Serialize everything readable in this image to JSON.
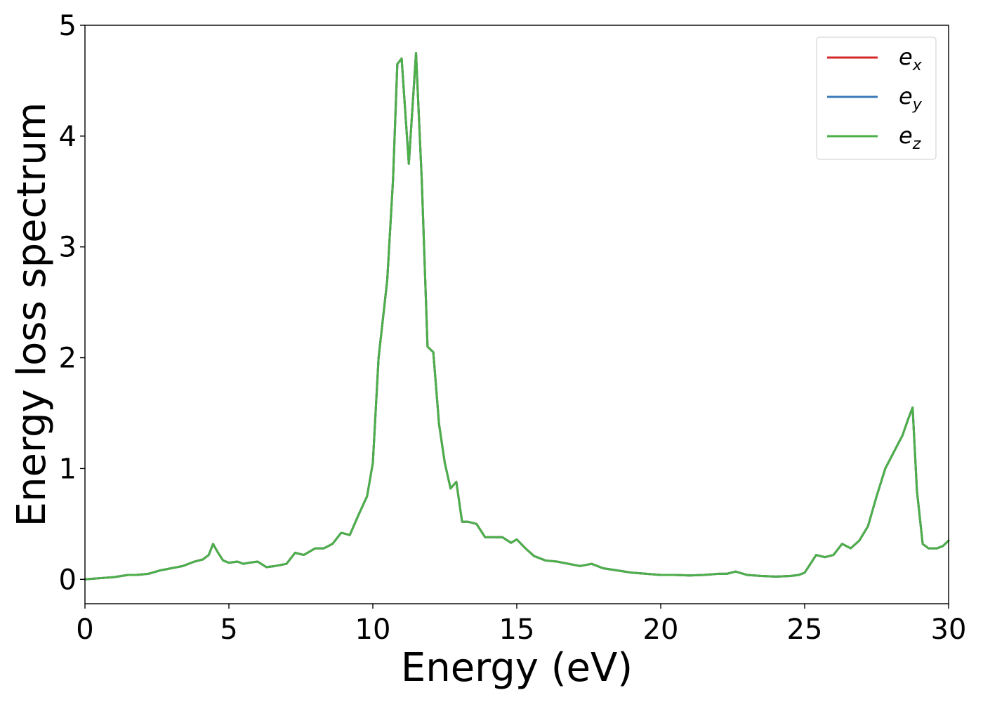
{
  "chart_data": {
    "type": "line",
    "xlabel": "Energy (eV)",
    "ylabel": "Energy loss spectrum",
    "xlim": [
      0,
      30
    ],
    "ylim": [
      -0.22,
      5.0
    ],
    "xticks": [
      0,
      5,
      10,
      15,
      20,
      25,
      30
    ],
    "xtick_labels": [
      "0",
      "5",
      "10",
      "15",
      "20",
      "25",
      "30"
    ],
    "yticks": [
      0,
      1,
      2,
      3,
      4,
      5
    ],
    "ytick_labels": [
      "0",
      "1",
      "2",
      "3",
      "4",
      "5"
    ],
    "grid": false,
    "legend_position": "top-right",
    "legend": [
      {
        "base": "e",
        "sub": "x",
        "color": "#d62728"
      },
      {
        "base": "e",
        "sub": "y",
        "color": "#3a7ab8"
      },
      {
        "base": "e",
        "sub": "z",
        "color": "#4daf4a"
      }
    ],
    "x": [
      0,
      0.5,
      1.0,
      1.5,
      1.8,
      2.2,
      2.6,
      3.0,
      3.4,
      3.8,
      4.1,
      4.3,
      4.45,
      4.6,
      4.8,
      5.0,
      5.3,
      5.5,
      5.7,
      6.0,
      6.3,
      6.6,
      7.0,
      7.3,
      7.6,
      8.0,
      8.3,
      8.6,
      8.9,
      9.2,
      9.5,
      9.8,
      10.0,
      10.2,
      10.5,
      10.7,
      10.85,
      11.0,
      11.25,
      11.5,
      11.7,
      11.9,
      12.1,
      12.3,
      12.5,
      12.7,
      12.9,
      13.1,
      13.3,
      13.6,
      13.9,
      14.2,
      14.5,
      14.8,
      15.0,
      15.3,
      15.6,
      16.0,
      16.4,
      16.8,
      17.2,
      17.6,
      18.0,
      18.5,
      19.0,
      19.5,
      20.0,
      20.5,
      21.0,
      21.5,
      22.0,
      22.3,
      22.6,
      23.0,
      23.5,
      24.0,
      24.5,
      24.8,
      25.0,
      25.2,
      25.4,
      25.7,
      26.0,
      26.3,
      26.6,
      26.9,
      27.2,
      27.5,
      27.8,
      28.0,
      28.2,
      28.4,
      28.6,
      28.75,
      28.9,
      29.1,
      29.3,
      29.6,
      29.8,
      30.0
    ],
    "series": [
      {
        "values": [
          0.0,
          0.01,
          0.02,
          0.04,
          0.04,
          0.05,
          0.08,
          0.1,
          0.12,
          0.16,
          0.18,
          0.22,
          0.32,
          0.25,
          0.17,
          0.15,
          0.16,
          0.14,
          0.15,
          0.16,
          0.11,
          0.12,
          0.14,
          0.24,
          0.22,
          0.28,
          0.28,
          0.32,
          0.42,
          0.4,
          0.58,
          0.75,
          1.05,
          2.0,
          2.7,
          3.6,
          4.65,
          4.7,
          3.75,
          4.75,
          3.6,
          2.1,
          2.05,
          1.4,
          1.05,
          0.82,
          0.88,
          0.52,
          0.52,
          0.5,
          0.38,
          0.38,
          0.38,
          0.33,
          0.36,
          0.28,
          0.21,
          0.17,
          0.16,
          0.14,
          0.12,
          0.14,
          0.1,
          0.08,
          0.06,
          0.05,
          0.04,
          0.04,
          0.035,
          0.04,
          0.05,
          0.05,
          0.07,
          0.04,
          0.03,
          0.025,
          0.03,
          0.04,
          0.06,
          0.14,
          0.22,
          0.2,
          0.22,
          0.32,
          0.28,
          0.35,
          0.48,
          0.75,
          1.0,
          1.1,
          1.2,
          1.3,
          1.45,
          1.55,
          0.8,
          0.32,
          0.28,
          0.28,
          0.3,
          0.35
        ]
      },
      {
        "values": [
          0.0,
          0.01,
          0.02,
          0.04,
          0.04,
          0.05,
          0.08,
          0.1,
          0.12,
          0.16,
          0.18,
          0.22,
          0.32,
          0.25,
          0.17,
          0.15,
          0.16,
          0.14,
          0.15,
          0.16,
          0.11,
          0.12,
          0.14,
          0.24,
          0.22,
          0.28,
          0.28,
          0.32,
          0.42,
          0.4,
          0.58,
          0.75,
          1.05,
          2.0,
          2.7,
          3.6,
          4.65,
          4.7,
          3.75,
          4.75,
          3.6,
          2.1,
          2.05,
          1.4,
          1.05,
          0.82,
          0.88,
          0.52,
          0.52,
          0.5,
          0.38,
          0.38,
          0.38,
          0.33,
          0.36,
          0.28,
          0.21,
          0.17,
          0.16,
          0.14,
          0.12,
          0.14,
          0.1,
          0.08,
          0.06,
          0.05,
          0.04,
          0.04,
          0.035,
          0.04,
          0.05,
          0.05,
          0.07,
          0.04,
          0.03,
          0.025,
          0.03,
          0.04,
          0.06,
          0.14,
          0.22,
          0.2,
          0.22,
          0.32,
          0.28,
          0.35,
          0.48,
          0.75,
          1.0,
          1.1,
          1.2,
          1.3,
          1.45,
          1.55,
          0.8,
          0.32,
          0.28,
          0.28,
          0.3,
          0.35
        ]
      },
      {
        "values": [
          0.0,
          0.01,
          0.02,
          0.04,
          0.04,
          0.05,
          0.08,
          0.1,
          0.12,
          0.16,
          0.18,
          0.22,
          0.32,
          0.25,
          0.17,
          0.15,
          0.16,
          0.14,
          0.15,
          0.16,
          0.11,
          0.12,
          0.14,
          0.24,
          0.22,
          0.28,
          0.28,
          0.32,
          0.42,
          0.4,
          0.58,
          0.75,
          1.05,
          2.0,
          2.7,
          3.6,
          4.65,
          4.7,
          3.75,
          4.75,
          3.6,
          2.1,
          2.05,
          1.4,
          1.05,
          0.82,
          0.88,
          0.52,
          0.52,
          0.5,
          0.38,
          0.38,
          0.38,
          0.33,
          0.36,
          0.28,
          0.21,
          0.17,
          0.16,
          0.14,
          0.12,
          0.14,
          0.1,
          0.08,
          0.06,
          0.05,
          0.04,
          0.04,
          0.035,
          0.04,
          0.05,
          0.05,
          0.07,
          0.04,
          0.03,
          0.025,
          0.03,
          0.04,
          0.06,
          0.14,
          0.22,
          0.2,
          0.22,
          0.32,
          0.28,
          0.35,
          0.48,
          0.75,
          1.0,
          1.1,
          1.2,
          1.3,
          1.45,
          1.55,
          0.8,
          0.32,
          0.28,
          0.28,
          0.3,
          0.35
        ]
      }
    ]
  }
}
